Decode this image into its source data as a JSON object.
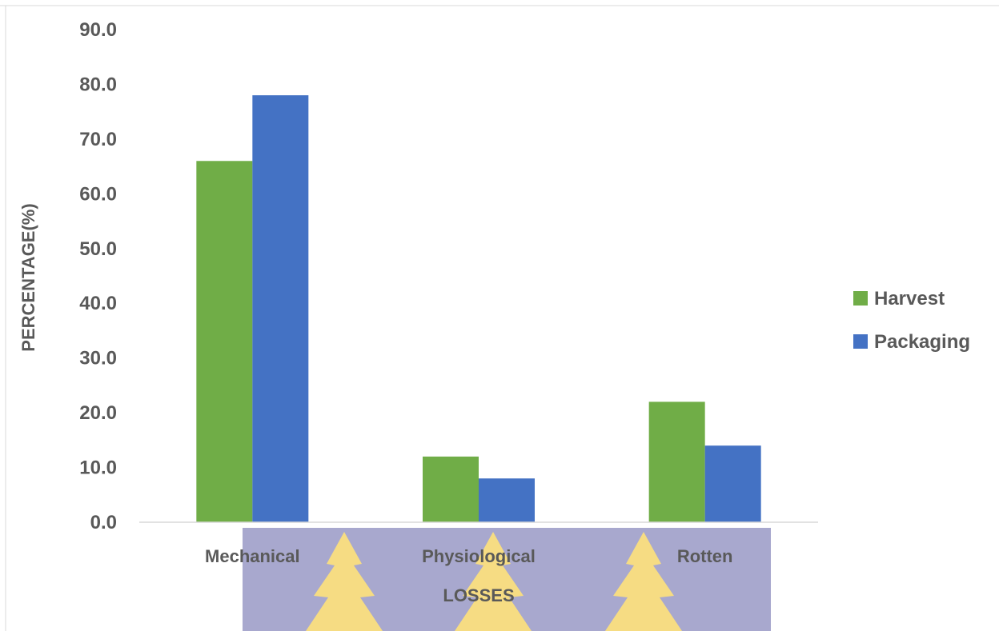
{
  "chart_data": {
    "type": "bar",
    "categories": [
      "Mechanical",
      "Physiological",
      "Rotten"
    ],
    "series": [
      {
        "name": "Harvest",
        "values": [
          66.0,
          12.0,
          22.0
        ],
        "color": "#70ad47"
      },
      {
        "name": "Packaging",
        "values": [
          78.0,
          8.0,
          14.0
        ],
        "color": "#4472c4"
      }
    ],
    "xlabel": "LOSSES",
    "ylabel": "PERCENTAGE(%)",
    "ylim": [
      0,
      90
    ],
    "yticks": [
      "0.0",
      "10.0",
      "20.0",
      "30.0",
      "40.0",
      "50.0",
      "60.0",
      "70.0",
      "80.0",
      "90.0"
    ],
    "grid": false,
    "legend_position": "right"
  },
  "watermark": {
    "description": "University crest watermark with gray band and yellow leaf shapes",
    "band_color": "#9999c6",
    "leaf_color": "#f5d76e"
  }
}
